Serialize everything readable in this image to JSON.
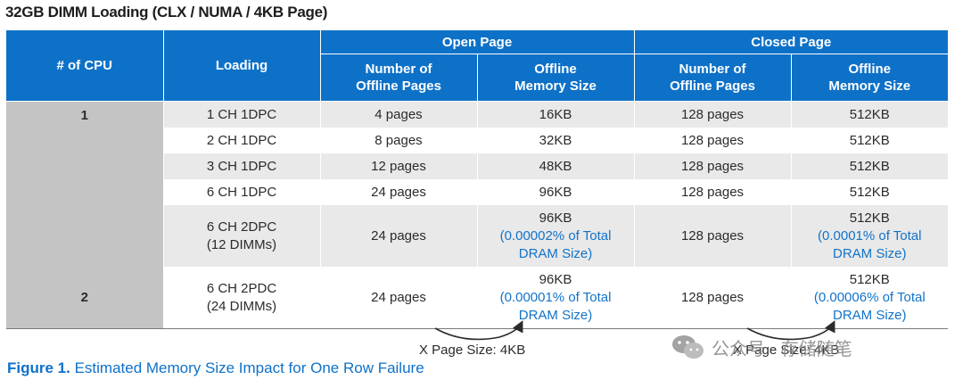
{
  "title": "32GB DIMM Loading (CLX / NUMA / 4KB Page)",
  "headers": {
    "cpu": "# of CPU",
    "loading": "Loading",
    "open_page": "Open Page",
    "closed_page": "Closed Page",
    "num_offline_line1": "Number of",
    "num_offline_line2": "Offline Pages",
    "offline_size_line1": "Offline",
    "offline_size_line2": "Memory Size"
  },
  "cpu_groups": [
    "1",
    "2"
  ],
  "rows": [
    {
      "loading": "1 CH 1DPC",
      "open_pages": "4 pages",
      "open_size": "16KB",
      "closed_pages": "128 pages",
      "closed_size": "512KB"
    },
    {
      "loading": "2 CH 1DPC",
      "open_pages": "8 pages",
      "open_size": "32KB",
      "closed_pages": "128 pages",
      "closed_size": "512KB"
    },
    {
      "loading": "3 CH 1DPC",
      "open_pages": "12 pages",
      "open_size": "48KB",
      "closed_pages": "128 pages",
      "closed_size": "512KB"
    },
    {
      "loading": "6 CH 1DPC",
      "open_pages": "24 pages",
      "open_size": "96KB",
      "closed_pages": "128 pages",
      "closed_size": "512KB"
    },
    {
      "loading_line1": "6 CH 2DPC",
      "loading_line2": "(12 DIMMs)",
      "open_pages": "24 pages",
      "open_size": "96KB",
      "open_pct_line1": "(0.00002% of Total",
      "open_pct_line2": "DRAM Size)",
      "closed_pages": "128 pages",
      "closed_size": "512KB",
      "closed_pct_line1": "(0.0001% of Total",
      "closed_pct_line2": "DRAM Size)"
    },
    {
      "loading_line1": "6 CH 2PDC",
      "loading_line2": "(24 DIMMs)",
      "open_pages": "24 pages",
      "open_size": "96KB",
      "open_pct_line1": "(0.00001% of Total",
      "open_pct_line2": "DRAM Size)",
      "closed_pages": "128 pages",
      "closed_size": "512KB",
      "closed_pct_line1": "(0.00006% of Total",
      "closed_pct_line2": "DRAM Size)"
    }
  ],
  "notes": {
    "open_note": "X Page Size: 4KB",
    "closed_note": "X Page Size: 4KB"
  },
  "caption": {
    "label": "Figure 1.",
    "text": " Estimated Memory Size Impact for One Row Failure"
  },
  "watermark": {
    "text": "公众号 · 存储随笔",
    "icon": "wechat-logo-icon"
  },
  "colors": {
    "header_blue": "#0e71c8",
    "row_gray": "#e9e9e9",
    "cpu_gray": "#c4c4c4",
    "percent_text": "#1273c9"
  }
}
